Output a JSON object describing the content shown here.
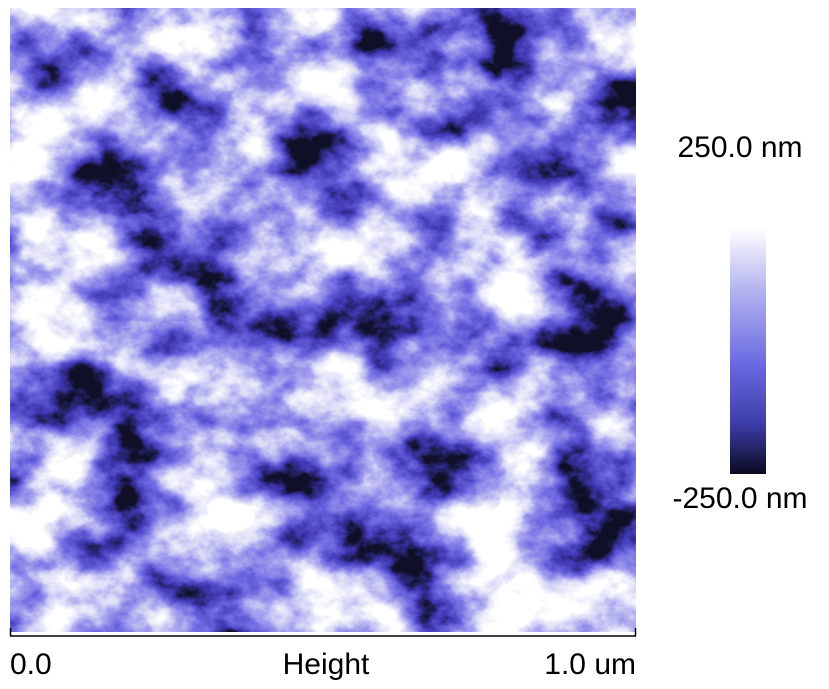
{
  "image": {
    "colorbar": {
      "max_label": "250.0 nm",
      "min_label": "-250.0 nm"
    },
    "scale": {
      "start_label": "0.0",
      "channel_label": "Height",
      "end_label": "1.0 um"
    }
  }
}
